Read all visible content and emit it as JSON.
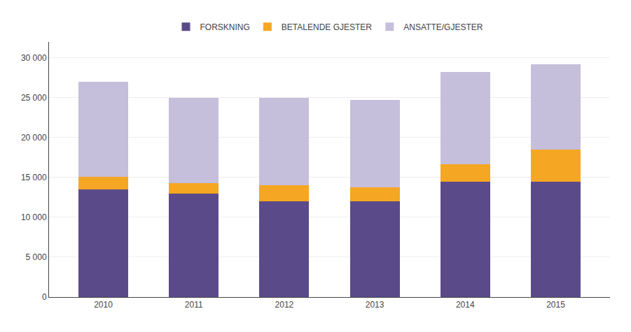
{
  "chart_data": {
    "type": "bar",
    "stacked": true,
    "categories": [
      "2010",
      "2011",
      "2012",
      "2013",
      "2014",
      "2015"
    ],
    "series": [
      {
        "name": "FORSKNING",
        "color": "#5b4a8a",
        "values": [
          13500,
          13000,
          12000,
          12000,
          14500,
          14500
        ]
      },
      {
        "name": "BETALENDE GJESTER",
        "color": "#f5a623",
        "values": [
          1600,
          1300,
          2000,
          1800,
          2200,
          4000
        ]
      },
      {
        "name": "ANSATTE/GJESTER",
        "color": "#c5bfdb",
        "values": [
          11900,
          10700,
          11000,
          10900,
          11500,
          10700
        ]
      }
    ],
    "ylim": [
      0,
      32000
    ],
    "yticks": [
      0,
      {
        "value": 5000,
        "label": "5 000"
      },
      {
        "value": 10000,
        "label": "10 000"
      },
      {
        "value": 15000,
        "label": "15 000"
      },
      {
        "value": 20000,
        "label": "20 000"
      },
      {
        "value": 25000,
        "label": "25 000"
      },
      {
        "value": 30000,
        "label": "30 000"
      }
    ],
    "grid": true,
    "legend": "top"
  }
}
